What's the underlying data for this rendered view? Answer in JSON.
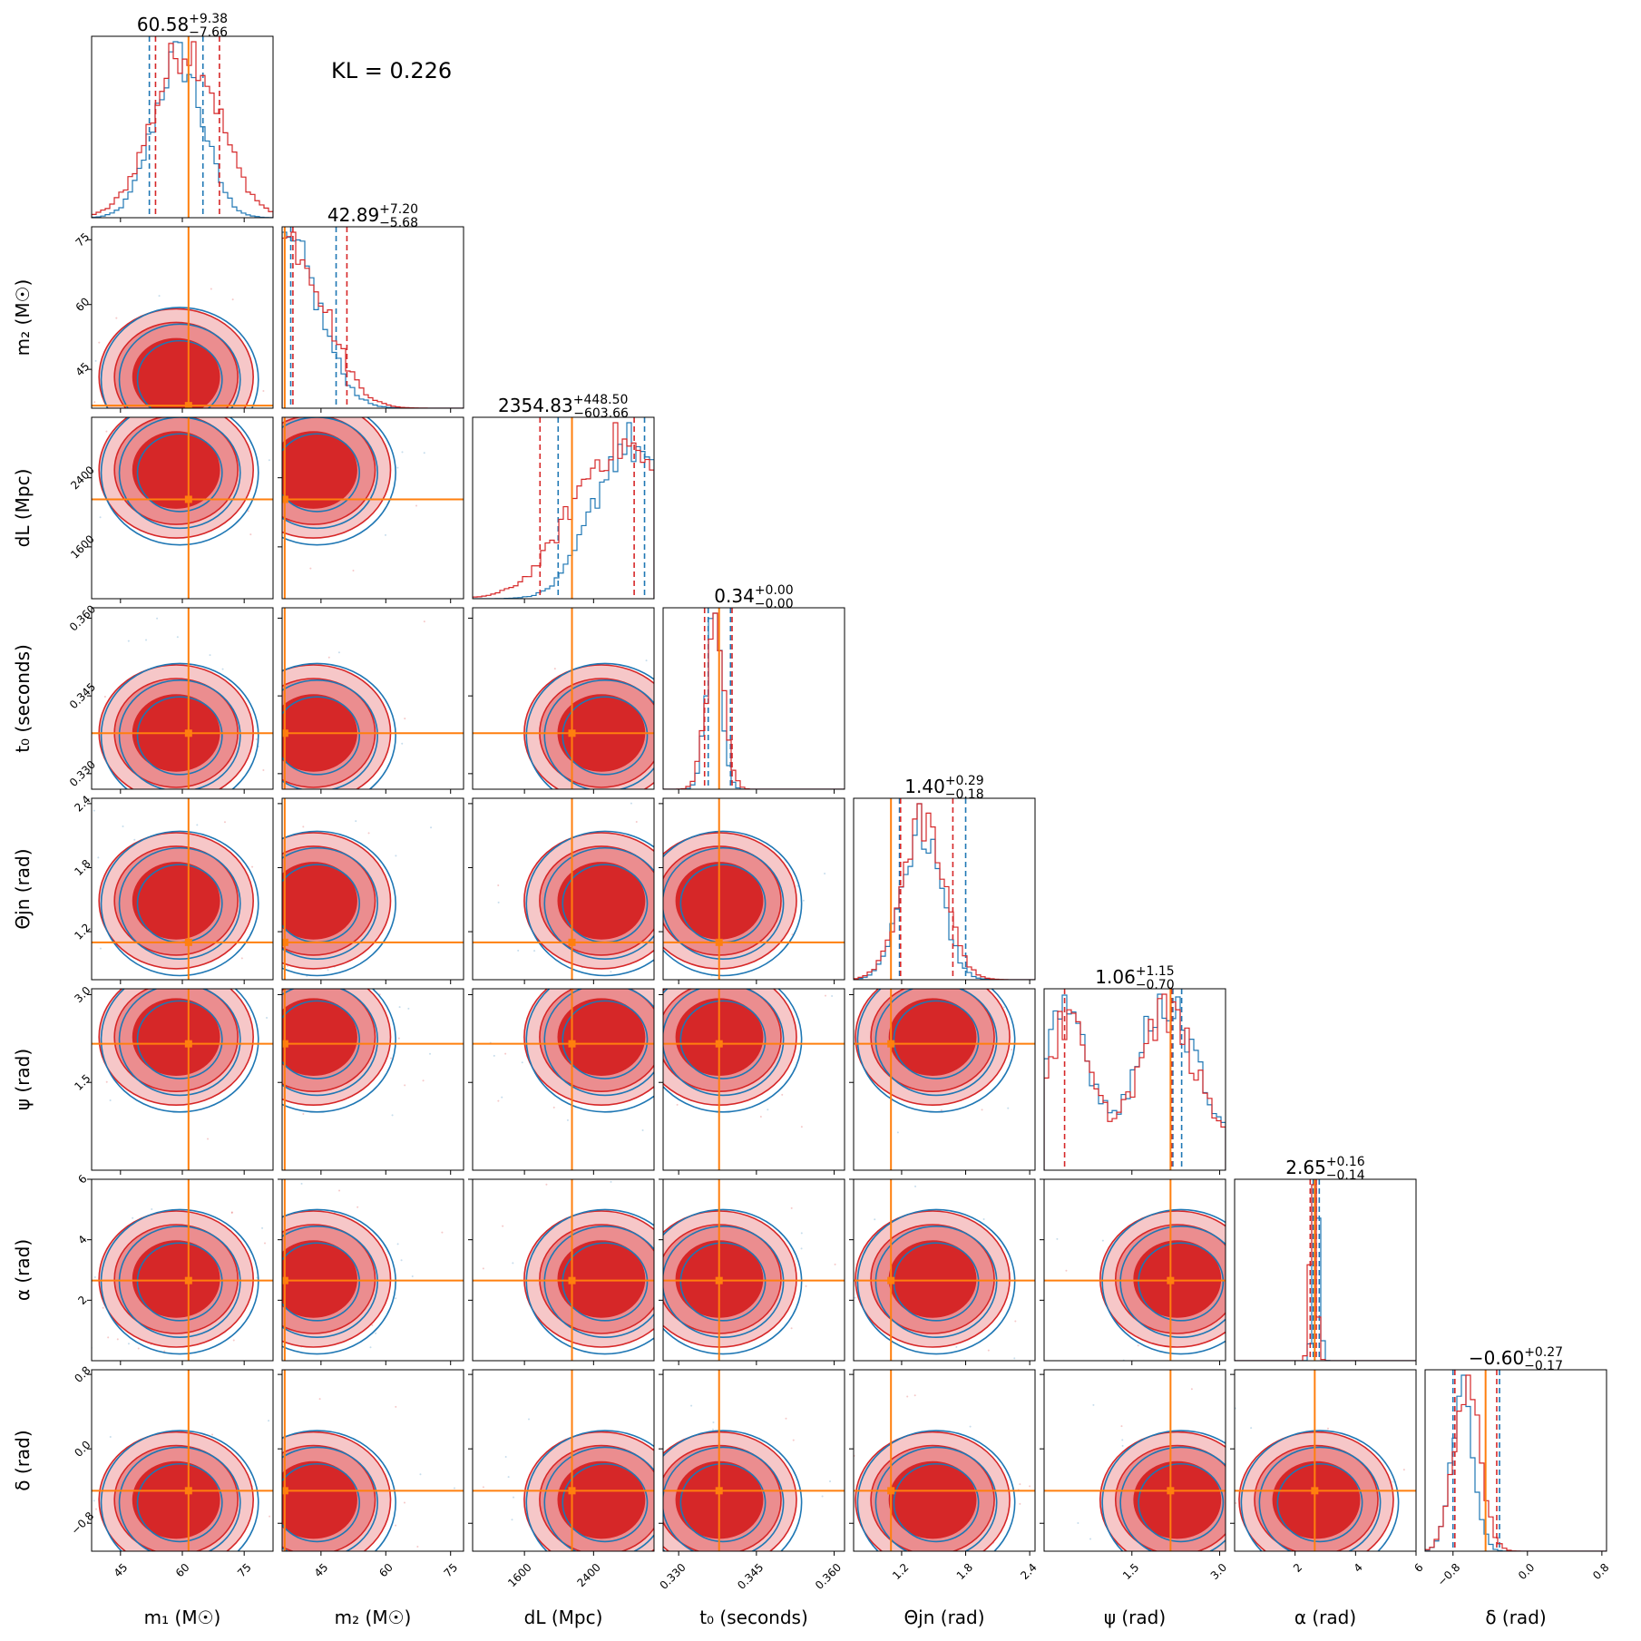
{
  "chart_data": {
    "type": "corner",
    "kl_text": "KL = 0.226",
    "colors": {
      "posterior_a": "#1f77b4",
      "posterior_b": "#d62728",
      "truth": "#ff7f0e"
    },
    "parameters": [
      {
        "id": "m1",
        "label": "m₁ (M☉)",
        "range": [
          38,
          82
        ],
        "ticks": [
          45,
          60,
          75
        ],
        "tick_labels": [
          "45",
          "60",
          "75"
        ],
        "truth": 61.5,
        "title_median": "60.58",
        "title_plus": "+9.38",
        "title_minus": "−7.66",
        "q_a": [
          52,
          65
        ],
        "q_b": [
          53.5,
          69
        ],
        "peak_a": 59,
        "peak_b": 61,
        "sigma_a": 6,
        "sigma_b": 8
      },
      {
        "id": "m2",
        "label": "m₂ (M☉)",
        "range": [
          36,
          78
        ],
        "ticks": [
          45,
          60,
          75
        ],
        "tick_labels": [
          "45",
          "60",
          "75"
        ],
        "truth": 36.6,
        "title_median": "42.89",
        "title_plus": "+7.20",
        "title_minus": "−5.68",
        "q_a": [
          38,
          48.5
        ],
        "q_b": [
          38.5,
          51
        ],
        "peak_a": 38,
        "peak_b": 38,
        "sigma_a": 7,
        "sigma_b": 8
      },
      {
        "id": "dL",
        "label": "dL (Mpc)",
        "range": [
          1000,
          3100
        ],
        "ticks": [
          1600,
          2400
        ],
        "tick_labels": [
          "1600",
          "2400"
        ],
        "truth": 2150,
        "title_median": "2354.83",
        "title_plus": "+448.50",
        "title_minus": "−603.66",
        "q_a": [
          1990,
          2990
        ],
        "q_b": [
          1780,
          2870
        ],
        "peak_a": 2800,
        "peak_b": 2700,
        "sigma_a": 400,
        "sigma_b": 550
      },
      {
        "id": "t0",
        "label": "t₀ (seconds)",
        "range": [
          0.327,
          0.362
        ],
        "ticks": [
          0.33,
          0.345,
          0.36
        ],
        "tick_labels": [
          "0.330",
          "0.345",
          "0.360"
        ],
        "truth": 0.3378,
        "title_median": "0.34",
        "title_plus": "+0.00",
        "title_minus": "−0.00",
        "q_a": [
          0.3357,
          0.34
        ],
        "q_b": [
          0.335,
          0.3403
        ],
        "peak_a": 0.3368,
        "peak_b": 0.337,
        "sigma_a": 0.0015,
        "sigma_b": 0.0018
      },
      {
        "id": "theta",
        "label": "Θjn (rad)",
        "range": [
          0.75,
          2.45
        ],
        "ticks": [
          1.2,
          1.8,
          2.4
        ],
        "tick_labels": [
          "1.2",
          "1.8",
          "2.4"
        ],
        "truth": 1.1,
        "title_median": "1.40",
        "title_plus": "+0.29",
        "title_minus": "−0.18",
        "q_a": [
          1.18,
          1.8
        ],
        "q_b": [
          1.19,
          1.68
        ],
        "peak_a": 1.38,
        "peak_b": 1.4,
        "sigma_a": 0.18,
        "sigma_b": 0.2
      },
      {
        "id": "psi",
        "label": "ψ (rad)",
        "range": [
          0,
          3.1
        ],
        "ticks": [
          1.5,
          3.0
        ],
        "tick_labels": [
          "1.5",
          "3.0"
        ],
        "truth": 2.16,
        "title_median": "1.06",
        "title_plus": "+1.15",
        "title_minus": "−0.70",
        "q_a": [
          2.2,
          2.35
        ],
        "q_b": [
          0.35,
          2.18
        ],
        "peak_a": 2.0,
        "peak_b": 2.0,
        "sigma_a": 0.6,
        "sigma_b": 0.6
      },
      {
        "id": "alpha",
        "label": "α (rad)",
        "range": [
          0,
          6
        ],
        "ticks": [
          2,
          4,
          6
        ],
        "tick_labels": [
          "2",
          "4",
          "6"
        ],
        "truth": 2.65,
        "title_median": "2.65",
        "title_plus": "+0.16",
        "title_minus": "−0.14",
        "q_a": [
          2.6,
          2.8
        ],
        "q_b": [
          2.5,
          2.7
        ],
        "peak_a": 2.7,
        "peak_b": 2.6,
        "sigma_a": 0.1,
        "sigma_b": 0.1
      },
      {
        "id": "delta",
        "label": "δ (rad)",
        "range": [
          -1.1,
          0.85
        ],
        "ticks": [
          -0.8,
          0.0,
          0.8
        ],
        "tick_labels": [
          "−0.8",
          "0.0",
          "0.8"
        ],
        "truth": -0.45,
        "title_median": "−0.60",
        "title_plus": "+0.27",
        "title_minus": "−0.17",
        "q_a": [
          -0.8,
          -0.3
        ],
        "q_b": [
          -0.78,
          -0.33
        ],
        "peak_a": -0.7,
        "peak_b": -0.65,
        "sigma_a": 0.12,
        "sigma_b": 0.14
      }
    ]
  }
}
